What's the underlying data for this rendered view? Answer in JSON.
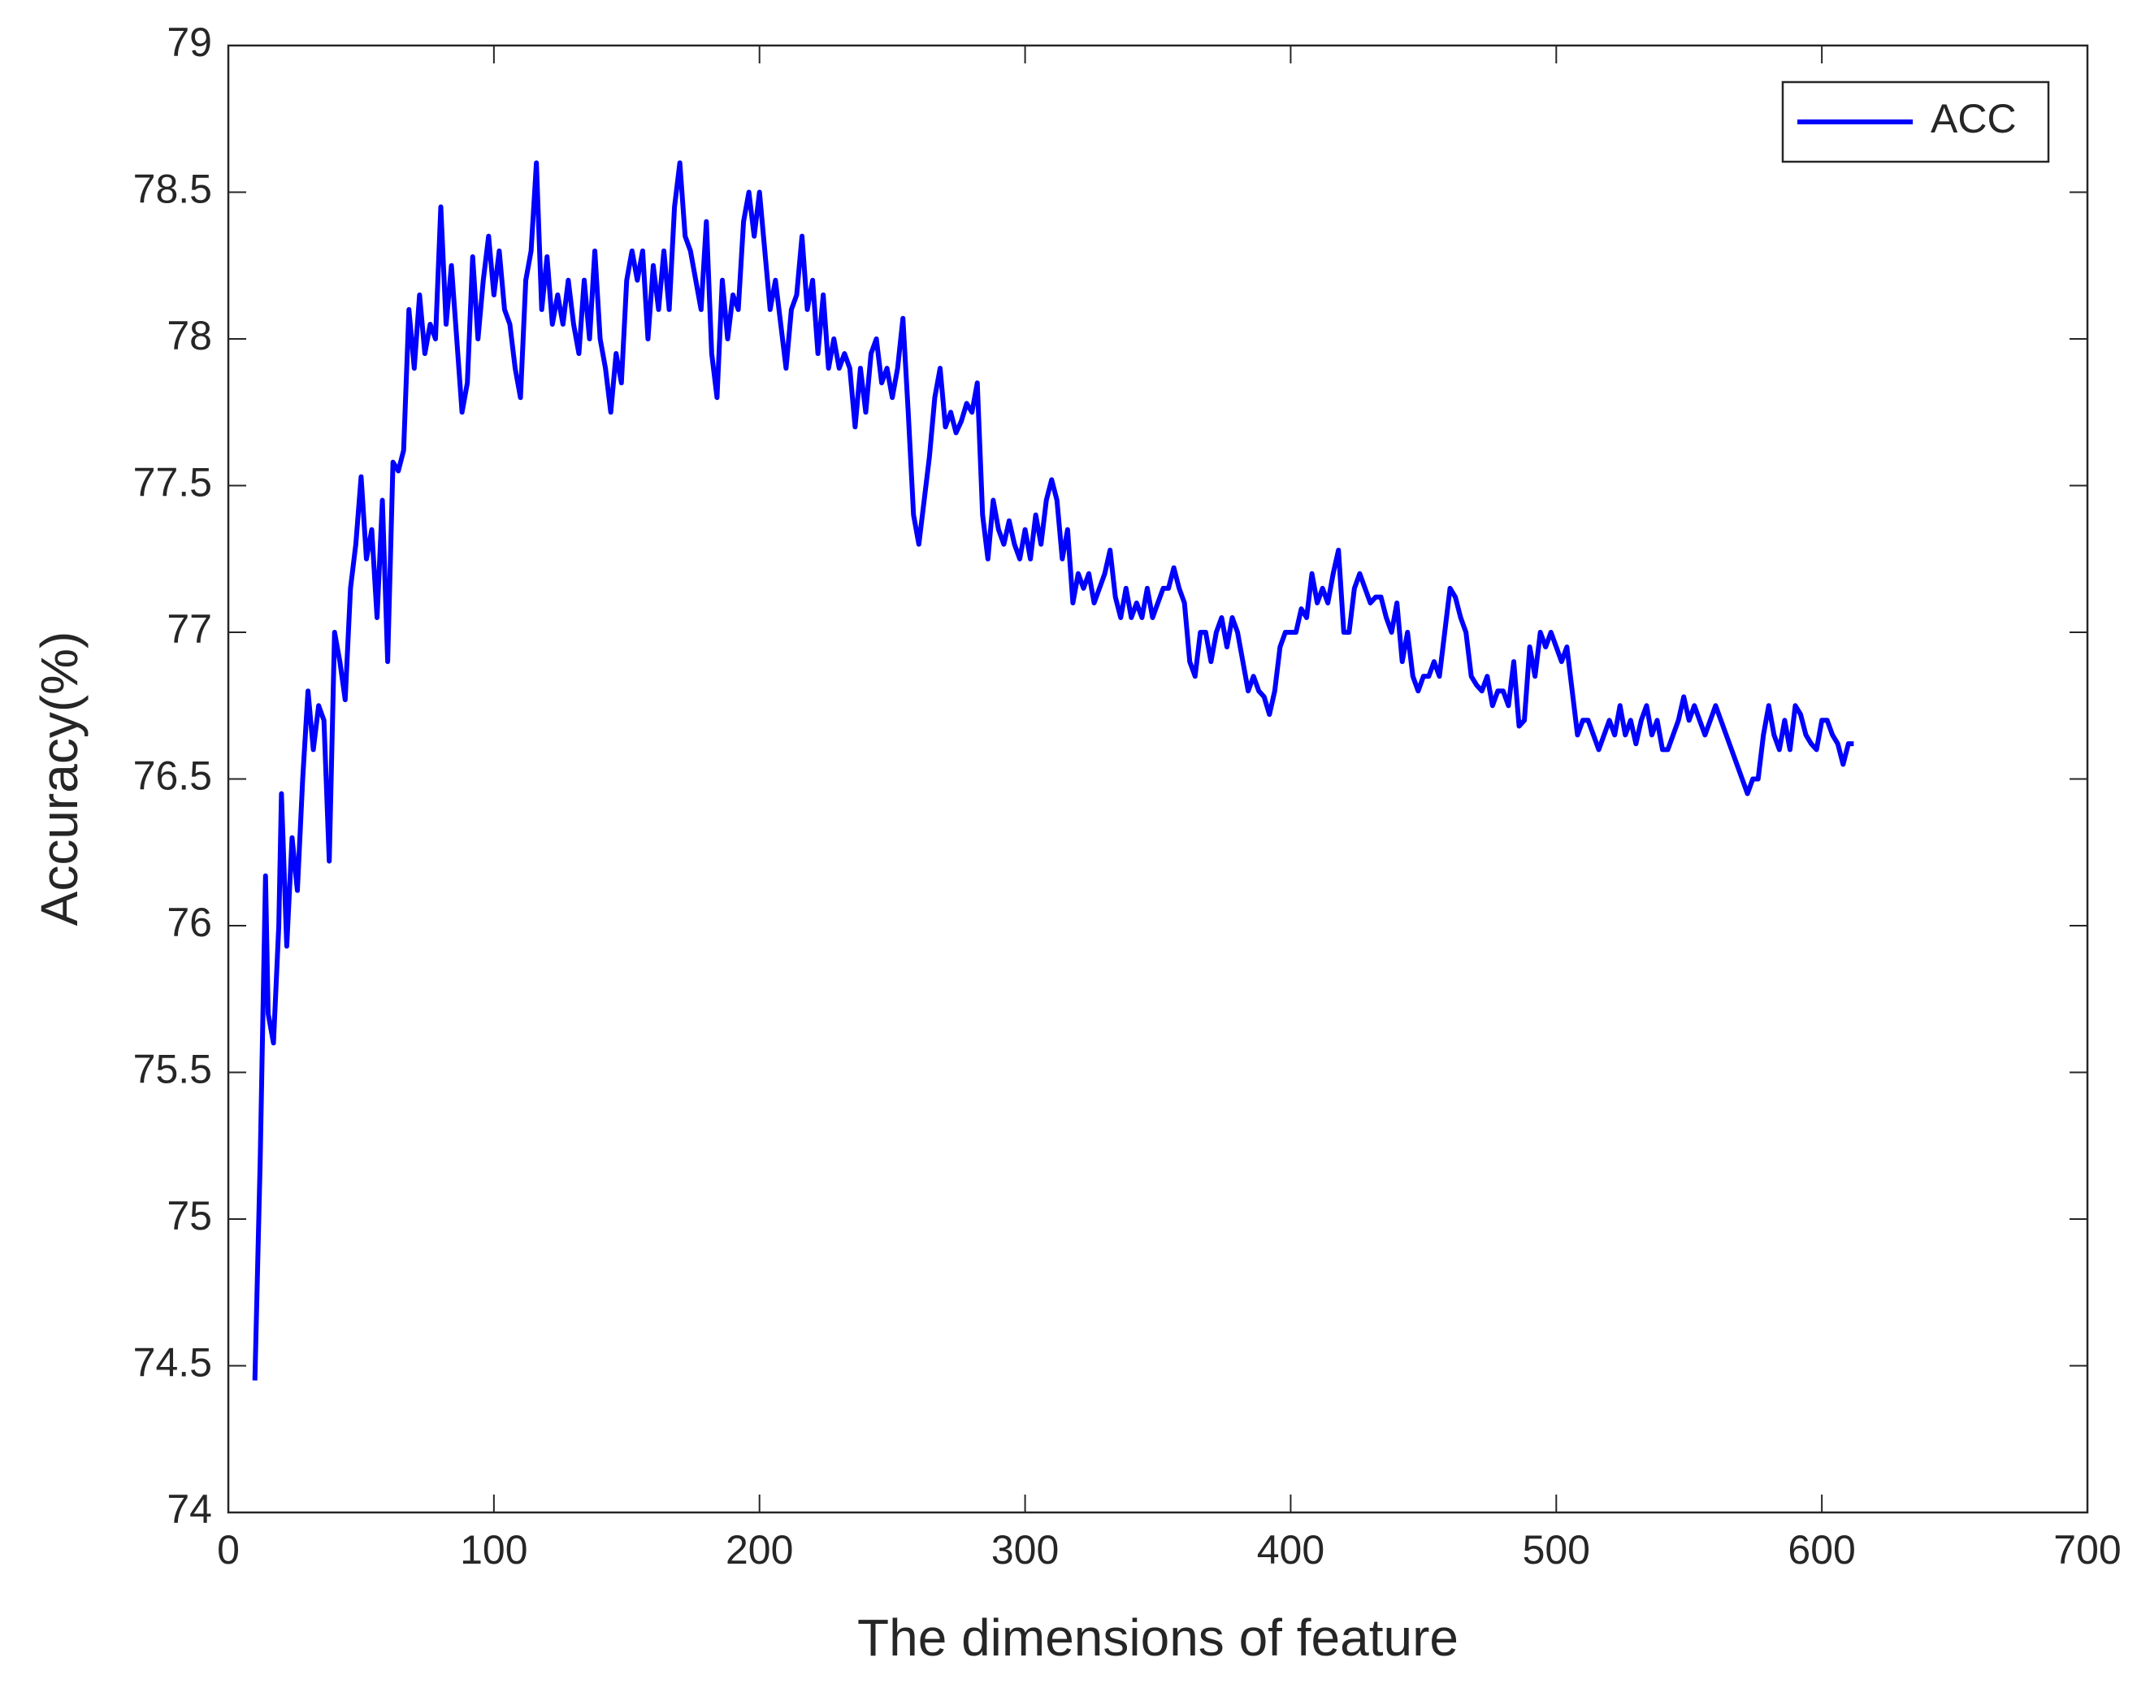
{
  "chart_data": {
    "type": "line",
    "xlabel": "The dimensions of feature",
    "ylabel": "Accuracy(%)",
    "xlim": [
      0,
      700
    ],
    "xticks": [
      0,
      100,
      200,
      300,
      400,
      500,
      600,
      700
    ],
    "ylim": [
      74,
      79
    ],
    "yticks": [
      74,
      74.5,
      75,
      75.5,
      76,
      76.5,
      77,
      77.5,
      78,
      78.5,
      79
    ],
    "legend": "upper right",
    "grid": false,
    "x": [
      10,
      12,
      14,
      15,
      17,
      19,
      20,
      22,
      24,
      26,
      28,
      30,
      32,
      34,
      36,
      38,
      40,
      42,
      44,
      46,
      48,
      50,
      52,
      54,
      56,
      58,
      60,
      62,
      64,
      66,
      68,
      70,
      72,
      74,
      76,
      78,
      80,
      82,
      84,
      86,
      88,
      90,
      92,
      94,
      96,
      98,
      100,
      102,
      104,
      106,
      108,
      110,
      112,
      114,
      116,
      118,
      120,
      122,
      124,
      126,
      128,
      130,
      132,
      134,
      136,
      138,
      140,
      142,
      144,
      146,
      148,
      150,
      152,
      154,
      156,
      158,
      160,
      162,
      164,
      166,
      168,
      170,
      172,
      174,
      176,
      178,
      180,
      182,
      184,
      186,
      188,
      190,
      192,
      194,
      196,
      198,
      200,
      202,
      204,
      206,
      208,
      210,
      212,
      214,
      216,
      218,
      220,
      222,
      224,
      226,
      228,
      230,
      232,
      234,
      236,
      238,
      240,
      242,
      244,
      246,
      248,
      250,
      252,
      254,
      256,
      258,
      260,
      262,
      264,
      266,
      268,
      270,
      272,
      274,
      276,
      278,
      280,
      282,
      284,
      286,
      288,
      290,
      292,
      294,
      296,
      298,
      300,
      302,
      304,
      306,
      308,
      310,
      312,
      314,
      316,
      318,
      320,
      322,
      324,
      326,
      328,
      330,
      332,
      334,
      336,
      338,
      340,
      342,
      344,
      346,
      348,
      350,
      352,
      354,
      356,
      358,
      360,
      362,
      364,
      366,
      368,
      370,
      372,
      374,
      376,
      378,
      380,
      382,
      384,
      386,
      388,
      390,
      392,
      394,
      396,
      398,
      400,
      402,
      404,
      406,
      408,
      410,
      412,
      414,
      416,
      418,
      420,
      422,
      424,
      426,
      428,
      430,
      432,
      434,
      436,
      438,
      440,
      442,
      444,
      446,
      448,
      450,
      452,
      454,
      456,
      458,
      460,
      462,
      464,
      466,
      468,
      470,
      472,
      474,
      476,
      478,
      480,
      482,
      484,
      486,
      488,
      490,
      492,
      494,
      496,
      498,
      500,
      502,
      504,
      506,
      508,
      510,
      512,
      514,
      516,
      518,
      520,
      522,
      524,
      526,
      528,
      530,
      532,
      534,
      536,
      538,
      540,
      542,
      544,
      546,
      548,
      550,
      552,
      554,
      556,
      558,
      560,
      562,
      564,
      566,
      568,
      570,
      572,
      574,
      576,
      578,
      580,
      582,
      584,
      586,
      588,
      590,
      592,
      594,
      596,
      598,
      600,
      602,
      604,
      606,
      608,
      610,
      612
    ],
    "series": [
      {
        "name": "ACC",
        "color": "#0000ff",
        "values": [
          74.45,
          75.2,
          76.17,
          75.7,
          75.6,
          76.0,
          76.45,
          75.93,
          76.3,
          76.12,
          76.5,
          76.8,
          76.6,
          76.75,
          76.7,
          76.22,
          77.0,
          76.9,
          76.77,
          77.15,
          77.3,
          77.53,
          77.25,
          77.35,
          77.05,
          77.45,
          76.9,
          77.58,
          77.55,
          77.62,
          78.1,
          77.9,
          78.15,
          77.95,
          78.05,
          78.0,
          78.45,
          78.05,
          78.25,
          78.0,
          77.75,
          77.85,
          78.28,
          78.0,
          78.2,
          78.35,
          78.15,
          78.3,
          78.1,
          78.05,
          77.9,
          77.8,
          78.2,
          78.3,
          78.6,
          78.1,
          78.28,
          78.05,
          78.15,
          78.05,
          78.2,
          78.05,
          77.95,
          78.2,
          78.0,
          78.3,
          78.0,
          77.9,
          77.75,
          77.95,
          77.85,
          78.2,
          78.3,
          78.2,
          78.3,
          78.0,
          78.25,
          78.1,
          78.3,
          78.1,
          78.45,
          78.6,
          78.35,
          78.3,
          78.2,
          78.1,
          78.4,
          77.95,
          77.8,
          78.2,
          78.0,
          78.15,
          78.1,
          78.4,
          78.5,
          78.35,
          78.5,
          78.3,
          78.1,
          78.2,
          78.05,
          77.9,
          78.1,
          78.15,
          78.35,
          78.1,
          78.2,
          77.95,
          78.15,
          77.9,
          78.0,
          77.9,
          77.95,
          77.9,
          77.7,
          77.9,
          77.75,
          77.95,
          78.0,
          77.85,
          77.9,
          77.8,
          77.9,
          78.07,
          77.75,
          77.4,
          77.3,
          77.45,
          77.6,
          77.8,
          77.9,
          77.7,
          77.75,
          77.68,
          77.72,
          77.78,
          77.75,
          77.85,
          77.4,
          77.25,
          77.45,
          77.35,
          77.3,
          77.38,
          77.3,
          77.25,
          77.35,
          77.25,
          77.4,
          77.3,
          77.45,
          77.52,
          77.45,
          77.25,
          77.35,
          77.1,
          77.2,
          77.15,
          77.2,
          77.1,
          77.15,
          77.2,
          77.28,
          77.12,
          77.05,
          77.15,
          77.05,
          77.1,
          77.05,
          77.15,
          77.05,
          77.1,
          77.15,
          77.15,
          77.22,
          77.15,
          77.1,
          76.9,
          76.85,
          77.0,
          77.0,
          76.9,
          77.0,
          77.05,
          76.95,
          77.05,
          77.0,
          76.9,
          76.8,
          76.85,
          76.8,
          76.78,
          76.72,
          76.8,
          76.95,
          77.0,
          77.0,
          77.0,
          77.08,
          77.05,
          77.2,
          77.1,
          77.15,
          77.1,
          77.2,
          77.28,
          77.0,
          77.0,
          77.15,
          77.2,
          77.15,
          77.1,
          77.12,
          77.12,
          77.05,
          77.0,
          77.1,
          76.9,
          77.0,
          76.85,
          76.8,
          76.85,
          76.85,
          76.9,
          76.85,
          77.0,
          77.15,
          77.12,
          77.05,
          77.0,
          76.85,
          76.82,
          76.8,
          76.85,
          76.75,
          76.8,
          76.8,
          76.75,
          76.9,
          76.68,
          76.7,
          76.95,
          76.85,
          77.0,
          76.95,
          77.0,
          76.95,
          76.9,
          76.95,
          76.8,
          76.65,
          76.7,
          76.7,
          76.65,
          76.6,
          76.65,
          76.7,
          76.65,
          76.75,
          76.65,
          76.7,
          76.62,
          76.7,
          76.75,
          76.65,
          76.7,
          76.6,
          76.6,
          76.65,
          76.7,
          76.78,
          76.7,
          76.75,
          76.7,
          76.65,
          76.7,
          76.75,
          76.7,
          76.65,
          76.6,
          76.55,
          76.5,
          76.45,
          76.5,
          76.5,
          76.65,
          76.75,
          76.65,
          76.6,
          76.7,
          76.6,
          76.75,
          76.72,
          76.65,
          76.62,
          76.6,
          76.7,
          76.7,
          76.65,
          76.62,
          76.55,
          76.62,
          76.62
        ]
      }
    ]
  }
}
